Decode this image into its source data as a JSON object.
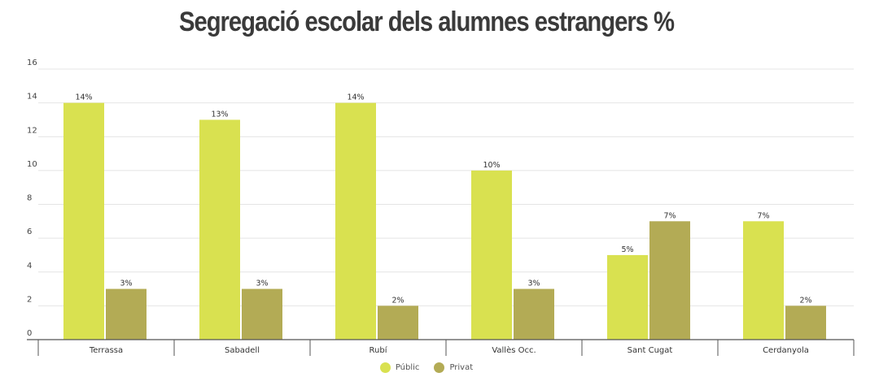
{
  "colors": {
    "public": "#d9e150",
    "private": "#b3ab55",
    "grid": "#e4e4e4",
    "axis": "#555555"
  },
  "chart_data": {
    "type": "bar",
    "title": "Segregació escolar dels alumnes estrangers %",
    "categories": [
      "Terrassa",
      "Sabadell",
      "Rubí",
      "Vallès Occ.",
      "Sant Cugat",
      "Cerdanyola"
    ],
    "series": [
      {
        "name": "Públic",
        "values": [
          14,
          13,
          14,
          10,
          5,
          7
        ],
        "labels": [
          "14%",
          "13%",
          "14%",
          "10%",
          "5%",
          "7%"
        ]
      },
      {
        "name": "Privat",
        "values": [
          3,
          3,
          2,
          3,
          7,
          2
        ],
        "labels": [
          "3%",
          "3%",
          "2%",
          "3%",
          "7%",
          "2%"
        ]
      }
    ],
    "ylim": [
      0,
      16
    ],
    "yticks": [
      "0",
      "2",
      "4",
      "6",
      "8",
      "10",
      "12",
      "14",
      "16"
    ],
    "grid": true,
    "legend": "bottom-center"
  }
}
